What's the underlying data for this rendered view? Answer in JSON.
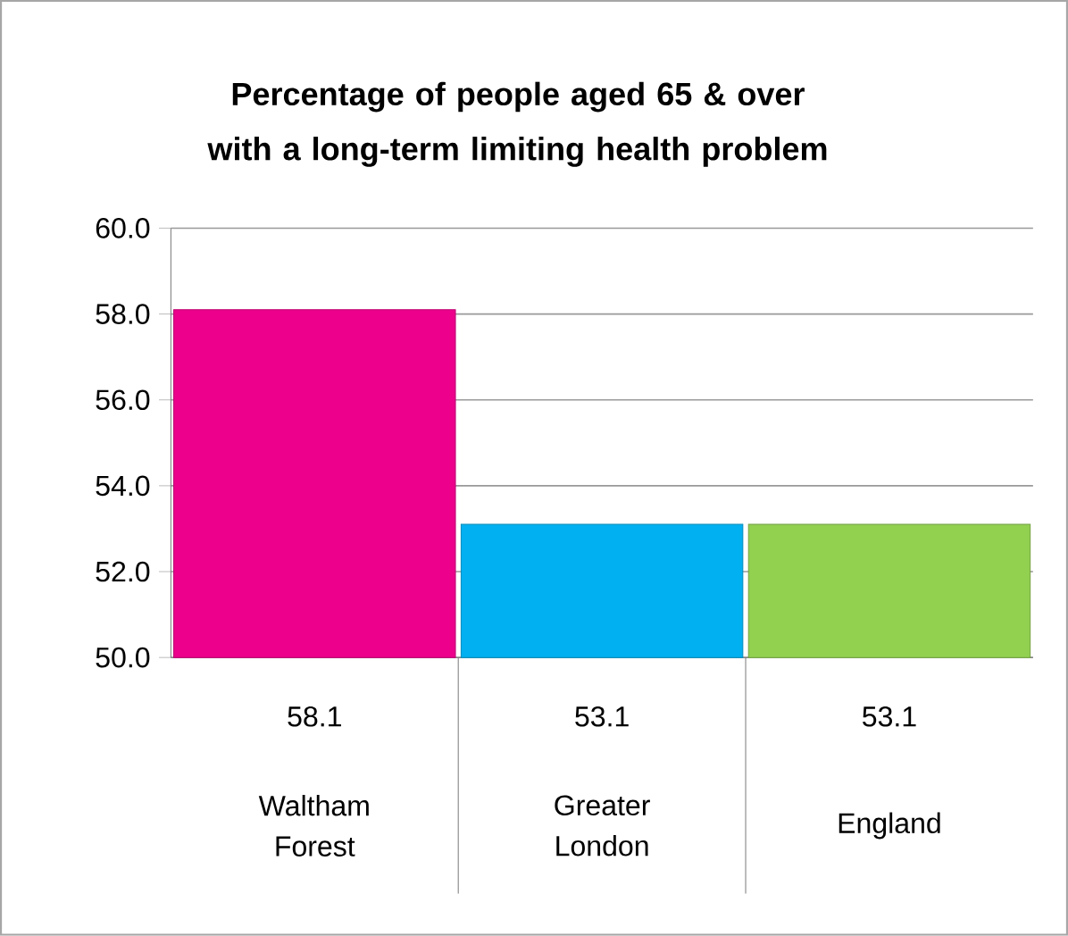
{
  "chart_data": {
    "type": "bar",
    "title": "Percentage of people aged 65 & over with a long-term limiting health problem",
    "categories": [
      "Waltham Forest",
      "Greater London",
      "England"
    ],
    "values": [
      58.1,
      53.1,
      53.1
    ],
    "colors": [
      "#ec008c",
      "#00b0f0",
      "#92d050"
    ],
    "ylim": [
      50,
      60
    ],
    "yticks": [
      {
        "value": 50,
        "label": "50.0"
      },
      {
        "value": 52,
        "label": "52.0"
      },
      {
        "value": 54,
        "label": "54.0"
      },
      {
        "value": 56,
        "label": "56.0"
      },
      {
        "value": 58,
        "label": "58.0"
      },
      {
        "value": 60,
        "label": "60.0"
      }
    ],
    "grid": "y",
    "data_labels": true
  }
}
